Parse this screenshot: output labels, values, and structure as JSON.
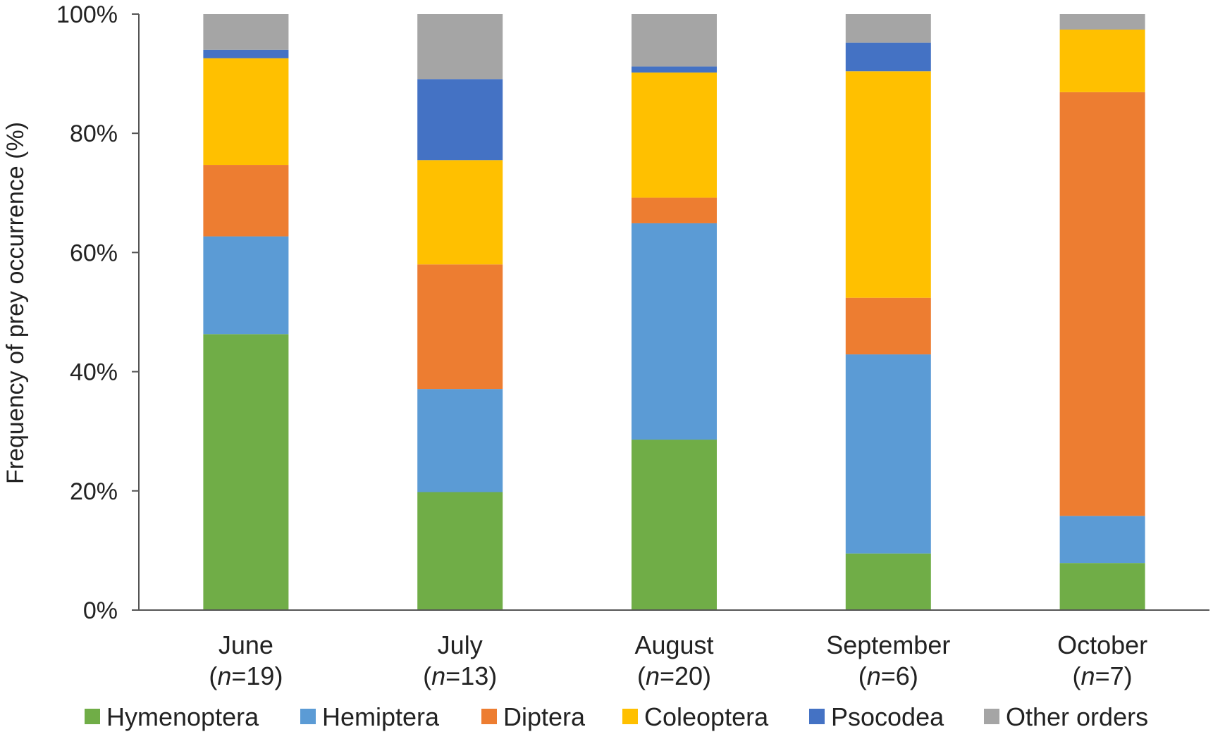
{
  "chart_data": {
    "type": "bar",
    "stacked": true,
    "percent_stacked": true,
    "ylabel": "Frequency of prey occurrence (%)",
    "xlabel": "",
    "ylim": [
      0,
      100
    ],
    "yticks": [
      "0%",
      "20%",
      "40%",
      "60%",
      "80%",
      "100%"
    ],
    "categories": [
      {
        "month": "June",
        "n_prefix": "(",
        "n_italic": "n",
        "n_suffix": "=19)"
      },
      {
        "month": "July",
        "n_prefix": "(",
        "n_italic": "n",
        "n_suffix": "=13)"
      },
      {
        "month": "August",
        "n_prefix": "(",
        "n_italic": "n",
        "n_suffix": "=20)"
      },
      {
        "month": "September",
        "n_prefix": "(",
        "n_italic": "n",
        "n_suffix": "=6)"
      },
      {
        "month": "October",
        "n_prefix": "(",
        "n_italic": "n",
        "n_suffix": "=7)"
      }
    ],
    "series": [
      {
        "name": "Hymenoptera",
        "color": "#70AD47",
        "values": [
          46.3,
          19.8,
          28.6,
          9.5,
          7.9
        ]
      },
      {
        "name": "Hemiptera",
        "color": "#5B9BD5",
        "values": [
          16.4,
          17.3,
          36.3,
          33.4,
          7.9
        ]
      },
      {
        "name": "Diptera",
        "color": "#ED7D31",
        "values": [
          12.0,
          20.9,
          4.3,
          9.5,
          71.1
        ]
      },
      {
        "name": "Coleoptera",
        "color": "#FFC000",
        "values": [
          17.9,
          17.5,
          21.0,
          38.0,
          10.5
        ]
      },
      {
        "name": "Psocodea",
        "color": "#4472C4",
        "values": [
          1.4,
          13.6,
          1.0,
          4.8,
          0.0
        ]
      },
      {
        "name": "Other orders",
        "color": "#A5A5A5",
        "values": [
          6.0,
          10.9,
          8.8,
          4.8,
          2.6
        ]
      }
    ],
    "grid": false,
    "legend_position": "bottom"
  }
}
